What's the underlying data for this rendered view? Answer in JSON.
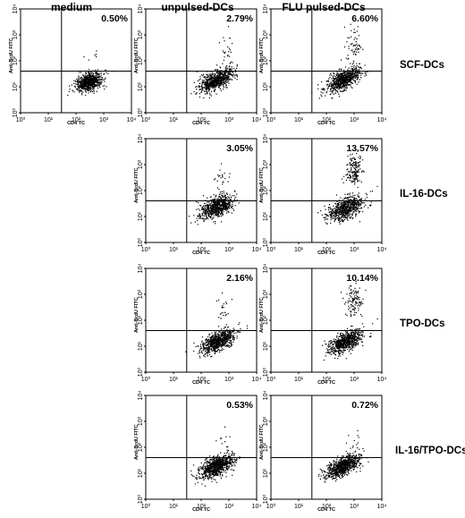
{
  "column_headers": [
    "medium",
    "unpulsed-DCs",
    "FLU pulsed-DCs"
  ],
  "row_labels": [
    "SCF-DCs",
    "IL-16-DCs",
    "TPO-DCs",
    "IL-16/TPO-DCs"
  ],
  "colors": {
    "frame": "#000000",
    "dots": "#000000",
    "background": "#ffffff"
  },
  "chart_data": {
    "type": "scatter",
    "xlabel": "CD4 TC",
    "ylabel": "Anti-BrdU FITC",
    "x_scale": "log",
    "y_scale": "log",
    "xlim": [
      1,
      10000
    ],
    "ylim": [
      1,
      10000
    ],
    "x_ticks": [
      "10⁰",
      "10¹",
      "10²",
      "10³",
      "10⁴"
    ],
    "y_ticks": [
      "10⁰",
      "10¹",
      "10²",
      "10³",
      "10⁴"
    ],
    "quadrant_gates": {
      "x": 30,
      "y": 40
    },
    "grid": false,
    "panels": [
      {
        "id": "medium",
        "row": 0,
        "col": 0,
        "column": "medium",
        "row_label": "",
        "percent": "0.50%",
        "percent_value": 0.5,
        "main_cluster": {
          "x_center": 300,
          "y_center": 15,
          "x_spread_decades": 0.24,
          "y_spread_decades": 0.17,
          "tilt": 0.25,
          "points": 750
        },
        "upper_right_population": {
          "x_center": 500,
          "y_center": 110,
          "x_spread_decades": 0.2,
          "y_spread_decades": 0.2,
          "points": 6
        }
      },
      {
        "id": "scf-unpulsed",
        "row": 0,
        "col": 1,
        "column": "unpulsed-DCs",
        "row_label": "SCF-DCs",
        "percent": "2.79%",
        "percent_value": 2.79,
        "main_cluster": {
          "x_center": 350,
          "y_center": 18,
          "x_spread_decades": 0.3,
          "y_spread_decades": 0.18,
          "tilt": 0.45,
          "points": 750
        },
        "upper_right_population": {
          "x_center": 800,
          "y_center": 250,
          "x_spread_decades": 0.13,
          "y_spread_decades": 0.35,
          "points": 25
        }
      },
      {
        "id": "scf-flu",
        "row": 0,
        "col": 2,
        "column": "FLU pulsed-DCs",
        "row_label": "SCF-DCs",
        "percent": "6.60%",
        "percent_value": 6.6,
        "main_cluster": {
          "x_center": 400,
          "y_center": 18,
          "x_spread_decades": 0.3,
          "y_spread_decades": 0.18,
          "tilt": 0.45,
          "points": 700
        },
        "upper_right_population": {
          "x_center": 1000,
          "y_center": 400,
          "x_spread_decades": 0.14,
          "y_spread_decades": 0.38,
          "points": 60
        }
      },
      {
        "id": "il16-unpulsed",
        "row": 1,
        "col": 1,
        "column": "unpulsed-DCs",
        "row_label": "IL-16-DCs",
        "percent": "3.05%",
        "percent_value": 3.05,
        "main_cluster": {
          "x_center": 350,
          "y_center": 22,
          "x_spread_decades": 0.28,
          "y_spread_decades": 0.2,
          "tilt": 0.4,
          "points": 700
        },
        "upper_right_population": {
          "x_center": 600,
          "y_center": 250,
          "x_spread_decades": 0.12,
          "y_spread_decades": 0.33,
          "points": 28
        }
      },
      {
        "id": "il16-flu",
        "row": 1,
        "col": 2,
        "column": "FLU pulsed-DCs",
        "row_label": "IL-16-DCs",
        "percent": "13.57%",
        "percent_value": 13.57,
        "main_cluster": {
          "x_center": 500,
          "y_center": 20,
          "x_spread_decades": 0.3,
          "y_spread_decades": 0.2,
          "tilt": 0.4,
          "points": 650
        },
        "upper_right_population": {
          "x_center": 1000,
          "y_center": 650,
          "x_spread_decades": 0.13,
          "y_spread_decades": 0.33,
          "points": 160
        }
      },
      {
        "id": "tpo-unpulsed",
        "row": 2,
        "col": 1,
        "column": "unpulsed-DCs",
        "row_label": "TPO-DCs",
        "percent": "2.16%",
        "percent_value": 2.16,
        "main_cluster": {
          "x_center": 400,
          "y_center": 15,
          "x_spread_decades": 0.3,
          "y_spread_decades": 0.17,
          "tilt": 0.45,
          "points": 750
        },
        "upper_right_population": {
          "x_center": 700,
          "y_center": 250,
          "x_spread_decades": 0.14,
          "y_spread_decades": 0.35,
          "points": 25
        }
      },
      {
        "id": "tpo-flu",
        "row": 2,
        "col": 2,
        "column": "FLU pulsed-DCs",
        "row_label": "TPO-DCs",
        "percent": "10.14%",
        "percent_value": 10.14,
        "main_cluster": {
          "x_center": 500,
          "y_center": 15,
          "x_spread_decades": 0.3,
          "y_spread_decades": 0.18,
          "tilt": 0.45,
          "points": 700
        },
        "upper_right_population": {
          "x_center": 1000,
          "y_center": 500,
          "x_spread_decades": 0.14,
          "y_spread_decades": 0.3,
          "points": 110
        }
      },
      {
        "id": "il16tpo-unpulsed",
        "row": 3,
        "col": 1,
        "column": "unpulsed-DCs",
        "row_label": "IL-16/TPO-DCs",
        "percent": "0.53%",
        "percent_value": 0.53,
        "main_cluster": {
          "x_center": 350,
          "y_center": 18,
          "x_spread_decades": 0.3,
          "y_spread_decades": 0.17,
          "tilt": 0.45,
          "points": 850
        },
        "upper_right_population": {
          "x_center": 600,
          "y_center": 150,
          "x_spread_decades": 0.13,
          "y_spread_decades": 0.22,
          "points": 10
        }
      },
      {
        "id": "il16tpo-flu",
        "row": 3,
        "col": 2,
        "column": "FLU pulsed-DCs",
        "row_label": "IL-16/TPO-DCs",
        "percent": "0.72%",
        "percent_value": 0.72,
        "main_cluster": {
          "x_center": 400,
          "y_center": 18,
          "x_spread_decades": 0.3,
          "y_spread_decades": 0.17,
          "tilt": 0.45,
          "points": 800
        },
        "upper_right_population": {
          "x_center": 900,
          "y_center": 150,
          "x_spread_decades": 0.13,
          "y_spread_decades": 0.22,
          "points": 14
        }
      }
    ]
  }
}
